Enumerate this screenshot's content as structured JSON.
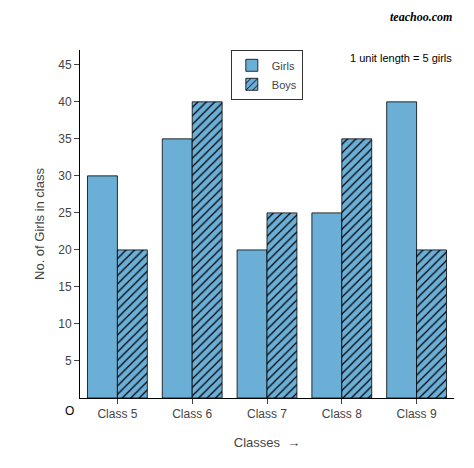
{
  "chart_data": {
    "type": "bar",
    "categories": [
      "Class 5",
      "Class 6",
      "Class 7",
      "Class 8",
      "Class 9"
    ],
    "series": [
      {
        "name": "Girls",
        "color": "#6baed6",
        "marker": "solid",
        "values": [
          30,
          35,
          20,
          25,
          40
        ]
      },
      {
        "name": "Boys",
        "color": "#6baed6",
        "marker": "hatched",
        "values": [
          20,
          40,
          25,
          35,
          20
        ]
      }
    ],
    "xlabel": "Classes  →",
    "ylabel": "No. of Girls in class",
    "annotations": [
      "1 unit length = 5 girls",
      "teachoo.com",
      "O"
    ],
    "ylim": [
      0,
      47
    ],
    "yticks": [
      5,
      10,
      15,
      20,
      25,
      30,
      35,
      40,
      45
    ],
    "grid": false,
    "legend": "upper center"
  }
}
